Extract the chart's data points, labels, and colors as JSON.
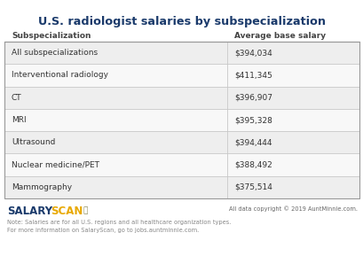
{
  "title": "U.S. radiologist salaries by subspecialization",
  "col1_header": "Subspecialization",
  "col2_header": "Average base salary",
  "rows": [
    [
      "All subspecializations",
      "$394,034"
    ],
    [
      "Interventional radiology",
      "$411,345"
    ],
    [
      "CT",
      "$396,907"
    ],
    [
      "MRI",
      "$395,328"
    ],
    [
      "Ultrasound",
      "$394,444"
    ],
    [
      "Nuclear medicine/PET",
      "$388,492"
    ],
    [
      "Mammography",
      "$375,514"
    ]
  ],
  "row_colors": [
    "#eeeeee",
    "#f8f8f8",
    "#eeeeee",
    "#f8f8f8",
    "#eeeeee",
    "#f8f8f8",
    "#eeeeee"
  ],
  "col_split": 0.625,
  "title_color": "#1a3a6b",
  "header_color": "#444444",
  "cell_text_color": "#333333",
  "border_color": "#c8c8c8",
  "footer_note_line1": "Note: Salaries are for all U.S. regions and all healthcare organization types.",
  "footer_note_line2": "For more information on SalaryScan, go to jobs.auntminnie.com.",
  "copyright_text": "All data copyright © 2019 AuntMinnie.com.",
  "background_color": "#ffffff",
  "table_border_color": "#999999",
  "salary_color": "#1a3a6b",
  "scan_color": "#e8a800"
}
